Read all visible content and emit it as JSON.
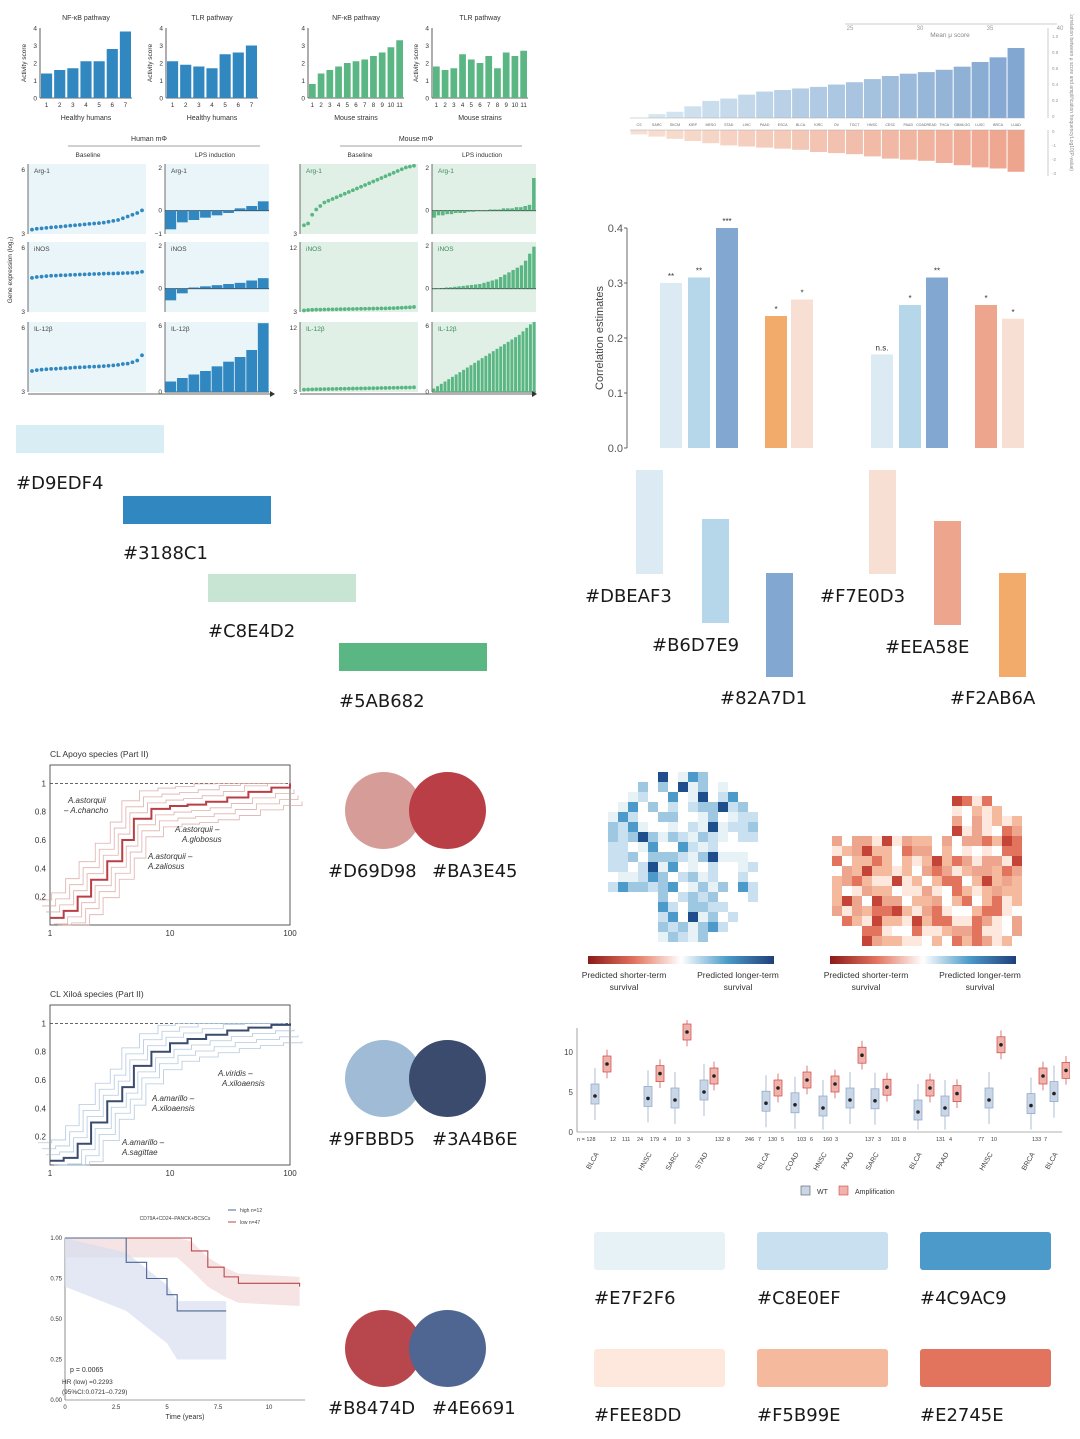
{
  "colors": {
    "top_left_bars": [
      {
        "hex": "#D9EDF4",
        "label": "#D9EDF4"
      },
      {
        "hex": "#3188C1",
        "label": "#3188C1"
      },
      {
        "hex": "#C8E4D2",
        "label": "#C8E4D2"
      },
      {
        "hex": "#5AB682",
        "label": "#5AB682"
      }
    ],
    "top_right_bars": [
      {
        "hex": "#DBEAF3",
        "label": "#DBEAF3"
      },
      {
        "hex": "#B6D7E9",
        "label": "#B6D7E9"
      },
      {
        "hex": "#82A7D1",
        "label": "#82A7D1"
      },
      {
        "hex": "#F7E0D3",
        "label": "#F7E0D3"
      },
      {
        "hex": "#EEA58E",
        "label": "#EEA58E"
      },
      {
        "hex": "#F2AB6A",
        "label": "#F2AB6A"
      }
    ],
    "circle_pairs": [
      {
        "a": "#D69D98",
        "b": "#BA3E45",
        "label_a": "#D69D98",
        "label_b": "#BA3E45"
      },
      {
        "a": "#9FBBD5",
        "b": "#3A4B6E",
        "label_a": "#9FBBD5",
        "label_b": "#3A4B6E"
      },
      {
        "a": "#B8474D",
        "b": "#4E6691",
        "label_a": "#B8474D",
        "label_b": "#4E6691"
      }
    ],
    "bottom_right_bars": [
      {
        "hex": "#E7F2F6",
        "label": "#E7F2F6"
      },
      {
        "hex": "#C8E0EF",
        "label": "#C8E0EF"
      },
      {
        "hex": "#4C9AC9",
        "label": "#4C9AC9"
      },
      {
        "hex": "#FEE8DD",
        "label": "#FEE8DD"
      },
      {
        "hex": "#F5B99E",
        "label": "#F5B99E"
      },
      {
        "hex": "#E2745E",
        "label": "#E2745E"
      }
    ]
  },
  "chart_data": [
    {
      "type": "bar",
      "title": "NF-κB pathway",
      "xlabel": "Healthy humans",
      "ylabel": "Activity score",
      "categories": [
        "1",
        "2",
        "3",
        "4",
        "5",
        "6",
        "7"
      ],
      "values": [
        1.4,
        1.6,
        1.7,
        2.1,
        2.1,
        2.8,
        3.8
      ],
      "ylim": [
        0,
        4
      ],
      "yticks": [
        "0",
        "1",
        "2",
        "3",
        "4"
      ],
      "color": "#3188C1"
    },
    {
      "type": "bar",
      "title": "TLR pathway",
      "xlabel": "Healthy humans",
      "ylabel": "Activity score",
      "categories": [
        "1",
        "2",
        "3",
        "4",
        "5",
        "6",
        "7"
      ],
      "values": [
        2.1,
        1.9,
        1.8,
        1.7,
        2.5,
        2.6,
        3.0
      ],
      "ylim": [
        0,
        4
      ],
      "yticks": [
        "0",
        "1",
        "2",
        "3",
        "4"
      ],
      "color": "#3188C1"
    },
    {
      "type": "bar",
      "title": "NF-κB pathway",
      "xlabel": "Mouse strains",
      "ylabel": "",
      "categories": [
        "1",
        "2",
        "3",
        "4",
        "5",
        "6",
        "7",
        "8",
        "9",
        "10",
        "11"
      ],
      "values": [
        0.8,
        1.4,
        1.6,
        1.8,
        2.0,
        2.1,
        2.2,
        2.4,
        2.6,
        2.9,
        3.3
      ],
      "ylim": [
        0,
        4
      ],
      "yticks": [
        "0",
        "1",
        "2",
        "3",
        "4"
      ],
      "color": "#5AB682"
    },
    {
      "type": "bar",
      "title": "TLR pathway",
      "xlabel": "Mouse strains",
      "ylabel": "Activity score",
      "categories": [
        "1",
        "2",
        "3",
        "4",
        "5",
        "6",
        "7",
        "8",
        "9",
        "10",
        "11"
      ],
      "values": [
        1.8,
        1.6,
        1.7,
        2.5,
        2.2,
        2.0,
        2.4,
        1.7,
        2.6,
        2.4,
        2.7
      ],
      "ylim": [
        0,
        4
      ],
      "yticks": [
        "0",
        "1",
        "2",
        "3",
        "4"
      ],
      "color": "#5AB682"
    },
    {
      "type": "scatter",
      "title": "Human mΦ",
      "group_labels": [
        "Baseline",
        "LPS induction"
      ],
      "ylabel": "Gene expression (log₂)",
      "genes": [
        "Arg-1",
        "iNOS",
        "IL-12β"
      ],
      "baseline_tick_top": [
        "6",
        "6",
        "6"
      ],
      "baseline_tick_bottom": [
        "3",
        "3",
        "3"
      ],
      "lps_ticks": [
        [
          "2",
          "0",
          "−1"
        ],
        [
          "2",
          "0",
          ""
        ],
        [
          "6",
          "0",
          ""
        ]
      ],
      "color": "#3188C1",
      "fill": "#D9EDF4",
      "series": [
        {
          "name": "Arg-1",
          "values": [
            3.25,
            3.3,
            3.32,
            3.35,
            3.38,
            3.4,
            3.42,
            3.45,
            3.48,
            3.5,
            3.52,
            3.55,
            3.58,
            3.6,
            3.62,
            3.65,
            3.7,
            3.75,
            3.8,
            3.9,
            4.0,
            4.1,
            4.2,
            4.35
          ]
        },
        {
          "name": "iNOS",
          "values": [
            4.95,
            5.0,
            5.02,
            5.05,
            5.07,
            5.08,
            5.1,
            5.1,
            5.12,
            5.13,
            5.14,
            5.15,
            5.16,
            5.17,
            5.18,
            5.19,
            5.2,
            5.2,
            5.21,
            5.22,
            5.23,
            5.24,
            5.25,
            5.3
          ]
        },
        {
          "name": "IL-12β",
          "values": [
            4.2,
            4.25,
            4.28,
            4.3,
            4.32,
            4.33,
            4.35,
            4.36,
            4.38,
            4.4,
            4.41,
            4.42,
            4.44,
            4.45,
            4.46,
            4.48,
            4.5,
            4.52,
            4.55,
            4.6,
            4.62,
            4.7,
            4.8,
            5.1
          ]
        }
      ],
      "lps_series": [
        {
          "name": "Arg-1",
          "values": [
            -0.8,
            -0.5,
            -0.4,
            -0.3,
            -0.2,
            -0.1,
            0.1,
            0.2,
            0.4
          ]
        },
        {
          "name": "iNOS",
          "values": [
            -0.5,
            -0.2,
            0.05,
            0.1,
            0.15,
            0.2,
            0.25,
            0.35,
            0.45
          ]
        },
        {
          "name": "IL-12β",
          "values": [
            0.9,
            1.2,
            1.5,
            1.8,
            2.2,
            2.6,
            3.0,
            3.6,
            5.9
          ]
        }
      ]
    },
    {
      "type": "scatter",
      "title": "Mouse mΦ",
      "group_labels": [
        "Baseline",
        "LPS induction"
      ],
      "genes": [
        "Arg-1",
        "iNOS",
        "IL-12β"
      ],
      "baseline_tick_top": [
        "",
        "12",
        "12"
      ],
      "baseline_tick_bottom": [
        "3",
        "3",
        "3"
      ],
      "lps_ticks": [
        [
          "2",
          "0",
          ""
        ],
        [
          "2",
          "0",
          ""
        ],
        [
          "6",
          "0",
          ""
        ]
      ],
      "color": "#5AB682",
      "fill": "#C8E4D2",
      "series": [
        {
          "name": "Arg-1",
          "values": [
            3.5,
            3.6,
            4.1,
            4.4,
            4.6,
            4.8,
            4.9,
            5.0,
            5.1,
            5.2,
            5.3,
            5.4,
            5.5,
            5.6,
            5.7,
            5.8,
            5.9,
            6.0,
            6.1,
            6.2,
            6.3,
            6.4,
            6.5,
            6.6,
            6.7,
            6.8,
            6.85,
            6.9
          ]
        },
        {
          "name": "iNOS",
          "values": [
            3.2,
            3.25,
            3.28,
            3.3,
            3.3,
            3.32,
            3.33,
            3.34,
            3.35,
            3.36,
            3.37,
            3.38,
            3.39,
            3.4,
            3.41,
            3.42,
            3.43,
            3.44,
            3.45,
            3.46,
            3.47,
            3.48,
            3.5,
            3.52,
            3.55,
            3.58,
            3.6,
            3.65
          ]
        },
        {
          "name": "IL-12β",
          "values": [
            3.3,
            3.32,
            3.34,
            3.35,
            3.36,
            3.37,
            3.38,
            3.39,
            3.4,
            3.41,
            3.42,
            3.43,
            3.44,
            3.45,
            3.46,
            3.47,
            3.48,
            3.49,
            3.5,
            3.51,
            3.52,
            3.53,
            3.54,
            3.55,
            3.56,
            3.57,
            3.58,
            3.6
          ]
        }
      ],
      "lps_series": [
        {
          "name": "Arg-1",
          "values": [
            -0.3,
            -0.2,
            -0.2,
            -0.15,
            -0.15,
            -0.1,
            -0.1,
            -0.1,
            -0.05,
            -0.05,
            0,
            0,
            0,
            0.05,
            0.05,
            0.05,
            0.1,
            0.1,
            0.1,
            0.15,
            0.15,
            0.2,
            0.25,
            1.4
          ]
        },
        {
          "name": "iNOS",
          "values": [
            0,
            0.02,
            0.03,
            0.05,
            0.06,
            0.08,
            0.1,
            0.12,
            0.14,
            0.16,
            0.18,
            0.2,
            0.25,
            0.3,
            0.35,
            0.4,
            0.5,
            0.6,
            0.7,
            0.8,
            0.9,
            1.0,
            1.2,
            1.5,
            1.8
          ]
        },
        {
          "name": "IL-12β",
          "values": [
            0.3,
            0.5,
            0.7,
            0.9,
            1.1,
            1.3,
            1.5,
            1.7,
            1.9,
            2.1,
            2.3,
            2.5,
            2.7,
            2.9,
            3.1,
            3.3,
            3.5,
            3.7,
            3.9,
            4.1,
            4.3,
            4.5,
            4.7,
            4.9,
            5.2,
            5.5,
            5.8,
            6.0
          ]
        }
      ]
    },
    {
      "type": "bar",
      "title": "Mean μ score",
      "top_ticks": [
        "25",
        "30",
        "35",
        "40"
      ],
      "categories": [
        "CS",
        "SARC",
        "SKCM",
        "KIRP",
        "MESO",
        "STAD",
        "LIHC",
        "PAAD",
        "ESCA",
        "BLCA",
        "KIRC",
        "OV",
        "TGCT",
        "HNSC",
        "CESC",
        "PAAD",
        "COADREAD",
        "THCA",
        "GBMLGG",
        "LUSC",
        "BRCA",
        "LUAD"
      ],
      "values": [
        0,
        0.5,
        0.8,
        1.5,
        2.2,
        2.5,
        3.0,
        3.4,
        3.6,
        3.8,
        4.0,
        4.3,
        4.6,
        5.0,
        5.4,
        5.7,
        5.9,
        6.2,
        6.6,
        7.2,
        7.8,
        9.0
      ],
      "neg_values": [
        0.4,
        0.6,
        0.8,
        1.0,
        1.2,
        1.4,
        1.5,
        1.6,
        1.7,
        1.8,
        2.0,
        2.1,
        2.2,
        2.4,
        2.6,
        2.7,
        2.8,
        3.0,
        3.2,
        3.4,
        3.5,
        3.8
      ],
      "right_axis_label_top": "Correlation between μ score and amplification frequency",
      "right_axis_label_bottom": "Log10(P-value)",
      "right_ticks_top": [
        "0",
        "0.2",
        "0.4",
        "0.6",
        "0.8",
        "1.0"
      ],
      "right_ticks_bottom": [
        "0",
        "-1",
        "-2",
        "-3"
      ]
    },
    {
      "type": "bar",
      "ylabel": "Correlation estimates",
      "yticks": [
        "0.0",
        "0.1",
        "0.2",
        "0.3",
        "0.4"
      ],
      "ylim": [
        0,
        0.4
      ],
      "values": [
        0.3,
        0.31,
        0.4,
        0.24,
        0.27,
        0.17,
        0.26,
        0.31,
        0.26,
        0.235
      ],
      "labels": [
        "**",
        "**",
        "***",
        "*",
        "*",
        "n.s.",
        "*",
        "**",
        "*",
        "*"
      ],
      "colors": [
        "#DBEAF3",
        "#B6D7E9",
        "#82A7D1",
        "#F2AB6A",
        "#F7E0D3",
        "#DBEAF3",
        "#B6D7E9",
        "#82A7D1",
        "#EEA58E",
        "#F7E0D3"
      ]
    },
    {
      "type": "line",
      "title": "CL Apoyo species (Part II)",
      "xticks": [
        "1",
        "10",
        "100"
      ],
      "yticks": [
        "0.2",
        "0.4",
        "0.6",
        "0.8",
        "1"
      ],
      "annotations": [
        "A.astorquii – A.chancho",
        "A.astorquii – A.globosus",
        "A.astorquii – A.zaliosus"
      ],
      "x": [
        1,
        1.3,
        1.7,
        2.2,
        3,
        4,
        5,
        7,
        10,
        14,
        20,
        30,
        45,
        70,
        100
      ],
      "series": [
        {
          "name": "",
          "values": [
            0.05,
            0.1,
            0.2,
            0.32,
            0.45,
            0.6,
            0.75,
            0.82,
            0.84,
            0.85,
            0.87,
            0.9,
            0.94,
            0.97,
            1.0
          ]
        }
      ]
    },
    {
      "type": "line",
      "title": "CL Xiloá species (Part II)",
      "xticks": [
        "1",
        "10",
        "100"
      ],
      "yticks": [
        "0.2",
        "0.4",
        "0.6",
        "0.8",
        "1"
      ],
      "annotations": [
        "A.viridis – A.xiloaensis",
        "A.amarillo – A.xiloaensis",
        "A.amarillo – A.sagittae"
      ],
      "x": [
        1,
        1.3,
        1.7,
        2.2,
        3,
        4,
        5,
        7,
        10,
        14,
        20,
        30,
        45,
        70,
        100
      ],
      "series": [
        {
          "name": "",
          "values": [
            0.03,
            0.05,
            0.15,
            0.3,
            0.45,
            0.55,
            0.7,
            0.8,
            0.86,
            0.89,
            0.92,
            0.95,
            0.97,
            0.99,
            1.0
          ]
        }
      ]
    },
    {
      "type": "line",
      "title": "CD79A+CD24–PANCK+BCSCs",
      "legend": [
        "high  n=12",
        "low  n=47"
      ],
      "xlabel": "Time (years)",
      "xticks": [
        "0",
        "2.5",
        "5",
        "7.5",
        "10"
      ],
      "yticks": [
        "0.00",
        "0.25",
        "0.50",
        "0.75",
        "1.00"
      ],
      "annotations": [
        "p = 0.0065",
        "HR (low) =0.2293",
        "(95%CI:0.0721–0.729)"
      ],
      "series": [
        {
          "name": "high",
          "x": [
            0,
            5.5,
            6.2,
            7.0,
            7.8,
            8.5,
            11.5
          ],
          "values": [
            1.0,
            1.0,
            0.92,
            0.82,
            0.76,
            0.72,
            0.7
          ]
        },
        {
          "name": "low",
          "x": [
            0,
            3.0,
            4.0,
            5.0,
            5.5,
            6.0,
            7.9
          ],
          "values": [
            1.0,
            0.85,
            0.75,
            0.65,
            0.55,
            0.55,
            0.55
          ]
        }
      ]
    },
    {
      "type": "heatmap",
      "legend_left": "Predicted shorter-term survival",
      "legend_right": "Predicted longer-term survival"
    },
    {
      "type": "heatmap",
      "legend_left": "Predicted shorter-term survival",
      "legend_right": "Predicted longer-term survival"
    },
    {
      "type": "bar",
      "subtype": "boxplot",
      "yticks": [
        "0",
        "5",
        "10"
      ],
      "counts": [
        "n = 128",
        "12",
        "111",
        "24",
        "179",
        "4",
        "10",
        "3",
        "132",
        "8",
        "246",
        "7",
        "130",
        "5",
        "103",
        "6",
        "160",
        "3",
        "137",
        "3",
        "101",
        "8",
        "131",
        "4",
        "77",
        "10",
        "133",
        "7"
      ],
      "categories": [
        "BLCA",
        "HNSC",
        "SARC",
        "STAD",
        "BLCA",
        "COAD",
        "HNSC",
        "PAAD",
        "SARC",
        "BLCA",
        "PAAD",
        "HNSC",
        "BRCA",
        "BLCA"
      ],
      "legend": [
        "WT",
        "Amplification"
      ],
      "wt_medians": [
        4.5,
        4.2,
        4.0,
        5.0,
        3.6,
        3.4,
        3.0,
        4.0,
        3.9,
        2.5,
        3.0,
        4.0,
        3.3,
        4.8
      ],
      "amp_medians": [
        8.5,
        7.3,
        12.5,
        7.0,
        5.5,
        6.5,
        6.0,
        9.6,
        5.6,
        5.5,
        4.8,
        10.9,
        7.0,
        7.7
      ]
    }
  ]
}
